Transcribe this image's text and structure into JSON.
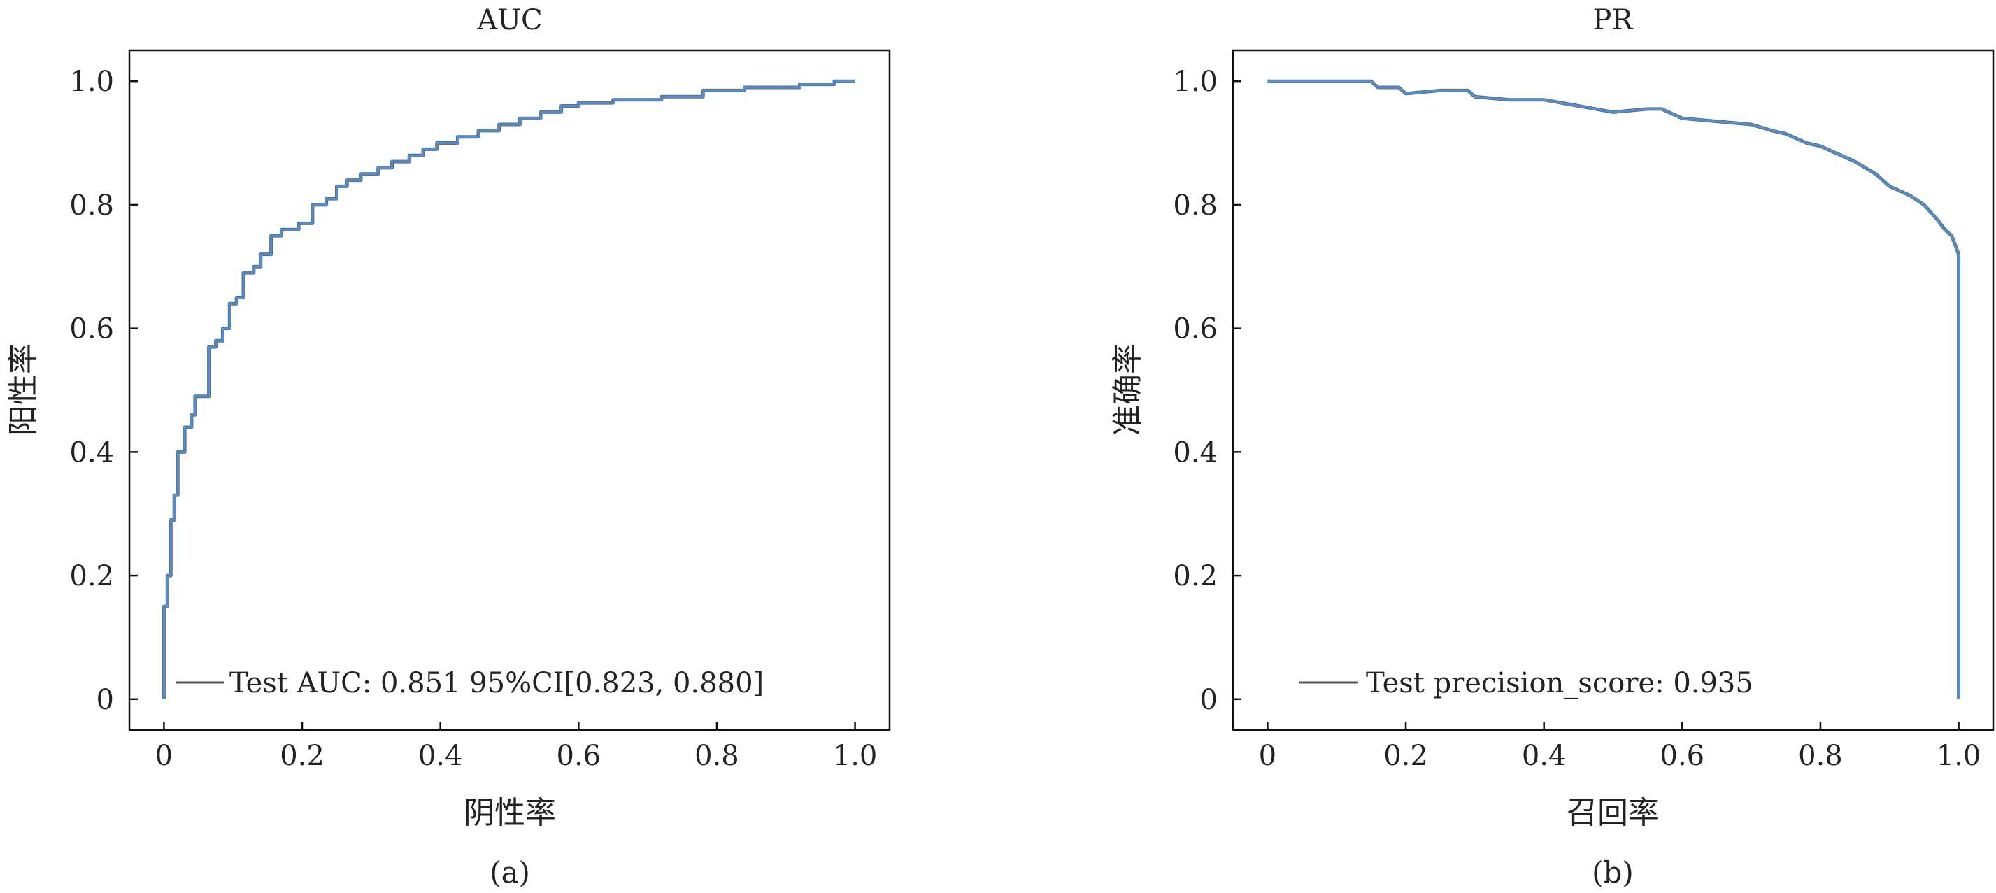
{
  "colors": {
    "curve_main": "#4a90d9",
    "curve_shadow": "#6b6b6b",
    "axes": "#111111",
    "background": "#ffffff"
  },
  "chart_data": [
    {
      "type": "line",
      "title": "AUC",
      "xlabel": "阴性率",
      "ylabel": "阳性率",
      "caption": "(a)",
      "xlim": [
        -0.05,
        1.05
      ],
      "ylim": [
        -0.05,
        1.05
      ],
      "xticks": [
        0,
        0.2,
        0.4,
        0.6,
        0.8,
        1.0
      ],
      "xtick_labels": [
        "0",
        "0.2",
        "0.4",
        "0.6",
        "0.8",
        "1.0"
      ],
      "yticks": [
        0,
        0.2,
        0.4,
        0.6,
        0.8,
        1.0
      ],
      "ytick_labels": [
        "0",
        "0.2",
        "0.4",
        "0.6",
        "0.8",
        "1.0"
      ],
      "legend": "Test AUC: 0.851 95%CI[0.823, 0.880]",
      "legend_position": "lower-right",
      "series": [
        {
          "x": [
            0,
            0,
            0.005,
            0.005,
            0.01,
            0.01,
            0.015,
            0.015,
            0.02,
            0.02,
            0.03,
            0.03,
            0.04,
            0.04,
            0.045,
            0.045,
            0.055,
            0.055,
            0.065,
            0.065,
            0.075,
            0.075,
            0.085,
            0.085,
            0.095,
            0.095,
            0.105,
            0.105,
            0.115,
            0.115,
            0.13,
            0.13,
            0.14,
            0.14,
            0.155,
            0.155,
            0.17,
            0.17,
            0.18,
            0.18,
            0.195,
            0.195,
            0.215,
            0.215,
            0.235,
            0.235,
            0.25,
            0.25,
            0.265,
            0.265,
            0.285,
            0.285,
            0.31,
            0.31,
            0.33,
            0.33,
            0.355,
            0.355,
            0.375,
            0.375,
            0.395,
            0.395,
            0.425,
            0.425,
            0.455,
            0.455,
            0.485,
            0.485,
            0.515,
            0.515,
            0.545,
            0.545,
            0.575,
            0.575,
            0.6,
            0.6,
            0.65,
            0.65,
            0.72,
            0.72,
            0.78,
            0.78,
            0.84,
            0.84,
            0.92,
            0.92,
            0.97,
            0.97,
            1.0,
            1.0
          ],
          "y": [
            0,
            0.15,
            0.15,
            0.2,
            0.2,
            0.29,
            0.29,
            0.33,
            0.33,
            0.4,
            0.4,
            0.44,
            0.44,
            0.46,
            0.46,
            0.49,
            0.49,
            0.49,
            0.49,
            0.57,
            0.57,
            0.58,
            0.58,
            0.6,
            0.6,
            0.64,
            0.64,
            0.65,
            0.65,
            0.69,
            0.69,
            0.7,
            0.7,
            0.72,
            0.72,
            0.75,
            0.75,
            0.76,
            0.76,
            0.76,
            0.76,
            0.77,
            0.77,
            0.8,
            0.8,
            0.81,
            0.81,
            0.83,
            0.83,
            0.84,
            0.84,
            0.85,
            0.85,
            0.86,
            0.86,
            0.87,
            0.87,
            0.88,
            0.88,
            0.89,
            0.89,
            0.9,
            0.9,
            0.91,
            0.91,
            0.92,
            0.92,
            0.93,
            0.93,
            0.94,
            0.94,
            0.95,
            0.95,
            0.96,
            0.96,
            0.965,
            0.965,
            0.97,
            0.97,
            0.975,
            0.975,
            0.985,
            0.985,
            0.99,
            0.99,
            0.995,
            0.995,
            1.0,
            1.0,
            1.0
          ]
        }
      ]
    },
    {
      "type": "line",
      "title": "PR",
      "xlabel": "召回率",
      "ylabel": "准确率",
      "caption": "(b)",
      "xlim": [
        -0.05,
        1.05
      ],
      "ylim": [
        -0.05,
        1.05
      ],
      "xticks": [
        0,
        0.2,
        0.4,
        0.6,
        0.8,
        1.0
      ],
      "xtick_labels": [
        "0",
        "0.2",
        "0.4",
        "0.6",
        "0.8",
        "1.0"
      ],
      "yticks": [
        0,
        0.2,
        0.4,
        0.6,
        0.8,
        1.0
      ],
      "ytick_labels": [
        "0",
        "0.2",
        "0.4",
        "0.6",
        "0.8",
        "1.0"
      ],
      "legend": "Test precision_score: 0.935",
      "legend_position": "lower-left",
      "series": [
        {
          "x": [
            0,
            0.05,
            0.1,
            0.15,
            0.16,
            0.19,
            0.2,
            0.25,
            0.29,
            0.3,
            0.35,
            0.4,
            0.45,
            0.5,
            0.55,
            0.57,
            0.6,
            0.65,
            0.7,
            0.73,
            0.75,
            0.78,
            0.8,
            0.83,
            0.85,
            0.88,
            0.9,
            0.93,
            0.95,
            0.97,
            0.98,
            0.99,
            1.0,
            1.0
          ],
          "y": [
            1.0,
            1.0,
            1.0,
            1.0,
            0.99,
            0.99,
            0.98,
            0.985,
            0.985,
            0.975,
            0.97,
            0.97,
            0.96,
            0.95,
            0.955,
            0.955,
            0.94,
            0.935,
            0.93,
            0.92,
            0.915,
            0.9,
            0.895,
            0.88,
            0.87,
            0.85,
            0.83,
            0.815,
            0.8,
            0.775,
            0.76,
            0.75,
            0.72,
            0.0
          ]
        }
      ]
    }
  ]
}
